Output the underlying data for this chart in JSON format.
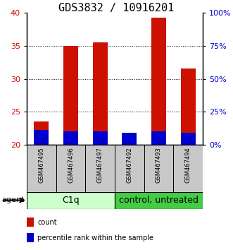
{
  "title": "GDS3832 / 10916201",
  "samples": [
    "GSM467495",
    "GSM467496",
    "GSM467497",
    "GSM467492",
    "GSM467493",
    "GSM467494"
  ],
  "count_values": [
    23.5,
    35.0,
    35.5,
    21.5,
    39.2,
    31.5
  ],
  "percentile_values": [
    11,
    10,
    10,
    9,
    10,
    9
  ],
  "ymin": 20,
  "ymax": 40,
  "yticks_left": [
    20,
    25,
    30,
    35,
    40
  ],
  "yticks_right": [
    0,
    25,
    50,
    75,
    100
  ],
  "bar_color": "#cc1100",
  "percentile_color": "#0000cc",
  "bar_width": 0.5,
  "group_defs": [
    {
      "indices": [
        0,
        1,
        2
      ],
      "label": "C1q",
      "facecolor": "#ccffcc",
      "edgecolor": "#000000"
    },
    {
      "indices": [
        3,
        4,
        5
      ],
      "label": "control, untreated",
      "facecolor": "#44cc44",
      "edgecolor": "#000000"
    }
  ],
  "legend_items": [
    {
      "label": "count",
      "color": "#cc1100"
    },
    {
      "label": "percentile rank within the sample",
      "color": "#0000cc"
    }
  ],
  "agent_label": "agent",
  "grid_linestyle": ":",
  "grid_linewidth": 0.7,
  "title_fontsize": 11,
  "tick_fontsize": 8,
  "sample_fontsize": 6,
  "group_fontsize": 9,
  "legend_fontsize": 7,
  "agent_fontsize": 8
}
